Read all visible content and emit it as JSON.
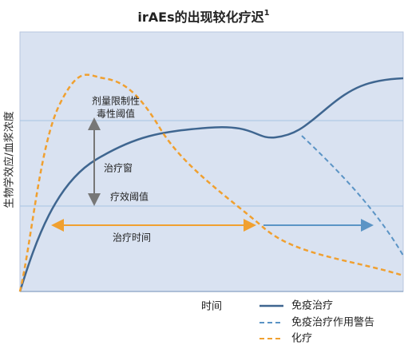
{
  "title": {
    "text": "irAEs的出现较化疗迟",
    "superscript": "1"
  },
  "y_axis_label": "生物学效应/血浆浓度",
  "x_axis_label": "时间",
  "annotations": {
    "toxicity_threshold_line1": "剂量限制性",
    "toxicity_threshold_line2": "毒性阈值",
    "therapeutic_window": "治疗窗",
    "efficacy_threshold": "疗效阈值",
    "treatment_time": "治疗时间"
  },
  "legend": [
    {
      "name": "免疫治疗"
    },
    {
      "name": "免疫治疗作用警告"
    },
    {
      "name": "化疗"
    }
  ]
}
